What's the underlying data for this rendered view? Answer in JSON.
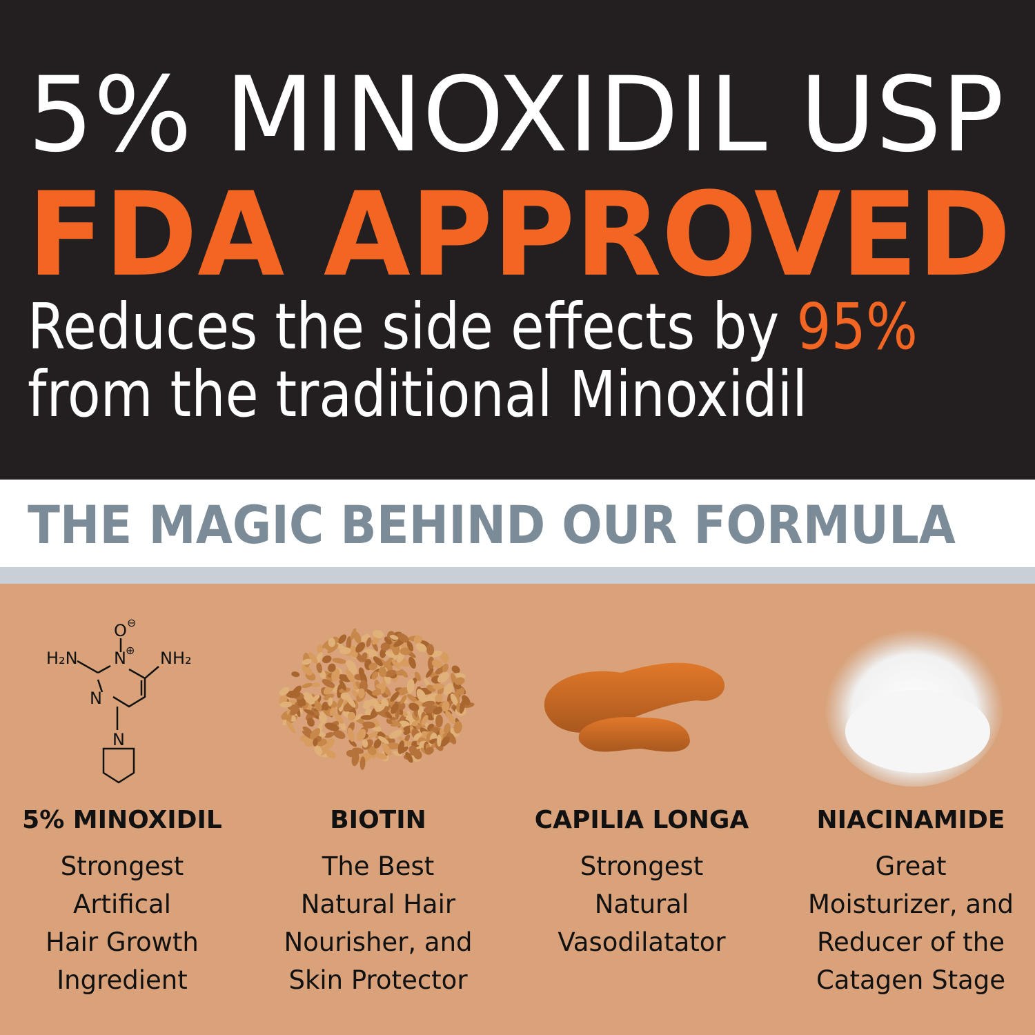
{
  "header": {
    "headline": "5% MINOXIDIL USP",
    "approval": "FDA APPROVED",
    "claim_before": "Reduces the side effects by ",
    "claim_highlight": "95%",
    "claim_after": "from the traditional Minoxidil"
  },
  "section_title": "THE MAGIC BEHIND OUR FORMULA",
  "molecule": {
    "left_group": "H₂N",
    "right_group": "NH₂",
    "oxygen": "O",
    "oxygen_charge": "⊖",
    "top_nitrogen": "N",
    "nitrogen_charge": "⊕",
    "ring_nitrogen": "N",
    "base_nitrogen": "N"
  },
  "ingredients": [
    {
      "name": "5% MINOXIDIL",
      "description": [
        "Strongest",
        "Artifical",
        "Hair Growth",
        "Ingredient"
      ]
    },
    {
      "name": "BIOTIN",
      "description": [
        "The Best",
        "Natural Hair",
        "Nourisher, and",
        "Skin Protector"
      ]
    },
    {
      "name": "CAPILIA LONGA",
      "description": [
        "Strongest",
        "Natural",
        "Vasodilatator"
      ]
    },
    {
      "name": "NIACINAMIDE",
      "description": [
        "Great",
        "Moisturizer, and",
        "Reducer of the",
        "Catagen Stage"
      ]
    }
  ]
}
